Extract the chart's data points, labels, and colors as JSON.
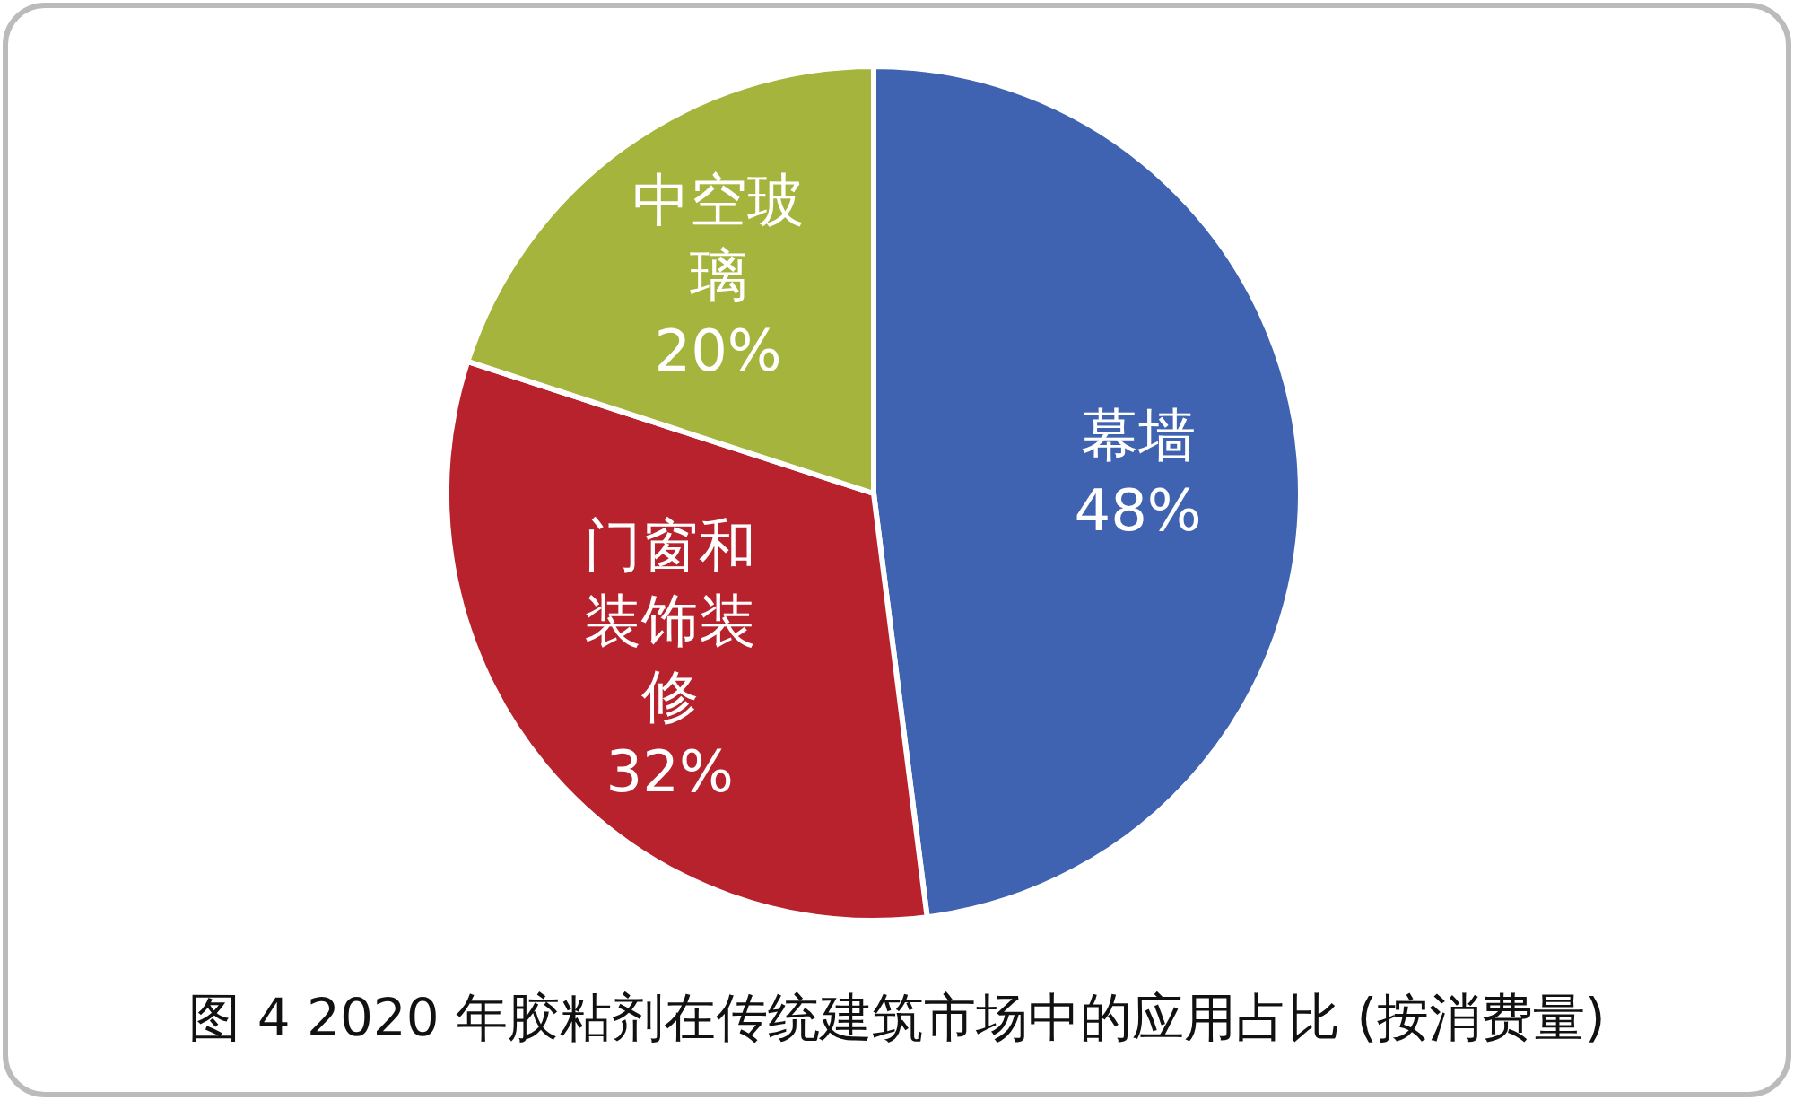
{
  "chart_data": {
    "type": "pie",
    "title": "图 4  2020 年胶粘剂在传统建筑市场中的应用占比 (按消费量)",
    "categories": [
      "幕墙",
      "门窗和装饰装修",
      "中空玻璃"
    ],
    "values": [
      48,
      32,
      20
    ],
    "value_labels": [
      "48%",
      "32%",
      "20%"
    ],
    "colors": [
      "#3f63b0",
      "#b8222c",
      "#a4b43c"
    ]
  }
}
